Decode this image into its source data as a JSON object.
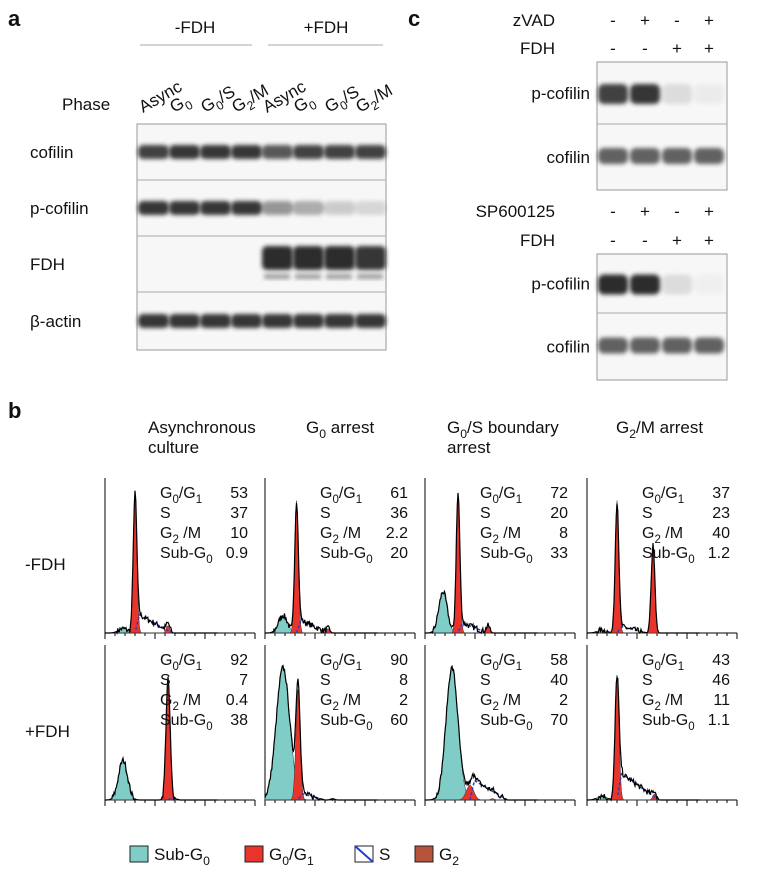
{
  "panel_a": {
    "label": "a",
    "groups": [
      "-FDH",
      "+FDH"
    ],
    "phase_label": "Phase",
    "lanes": [
      "Async",
      "G0",
      "G0/S",
      "G2/M",
      "Async",
      "G0",
      "G0/S",
      "G2/M"
    ],
    "rows": [
      "cofilin",
      "p-cofilin",
      "FDH",
      "β-actin"
    ]
  },
  "panel_b": {
    "label": "b",
    "columns": [
      [
        "Asynchronous",
        "culture"
      ],
      [
        "G0 arrest"
      ],
      [
        "G0/S boundary",
        "arrest"
      ],
      [
        "G2/M arrest"
      ]
    ],
    "rows": [
      "-FDH",
      "+FDH"
    ],
    "stats_labels": [
      "G0/G1",
      "S",
      "G2 /M",
      "Sub-G0"
    ],
    "values": [
      [
        [
          53,
          37,
          10,
          0.9
        ],
        [
          61,
          36,
          2.2,
          20
        ],
        [
          72,
          20,
          8,
          33
        ],
        [
          37,
          23,
          40,
          1.2
        ]
      ],
      [
        [
          92,
          7,
          0.4,
          38
        ],
        [
          90,
          8,
          2,
          60
        ],
        [
          58,
          40,
          2,
          70
        ],
        [
          43,
          46,
          11,
          1.1
        ]
      ]
    ],
    "legend": [
      "Sub-G0",
      "G0/G1",
      "S",
      "G2"
    ]
  },
  "panel_c": {
    "label": "c",
    "blots": [
      {
        "treatment": {
          "name": "zVAD",
          "signs": [
            "-",
            "+",
            "-",
            "+"
          ]
        },
        "fdh": {
          "name": "FDH",
          "signs": [
            "-",
            "-",
            "+",
            "+"
          ]
        },
        "rows": [
          "p-cofilin",
          "cofilin"
        ]
      },
      {
        "treatment": {
          "name": "SP600125",
          "signs": [
            "-",
            "+",
            "-",
            "+"
          ]
        },
        "fdh": {
          "name": "FDH",
          "signs": [
            "-",
            "-",
            "+",
            "+"
          ]
        },
        "rows": [
          "p-cofilin",
          "cofilin"
        ]
      }
    ]
  }
}
